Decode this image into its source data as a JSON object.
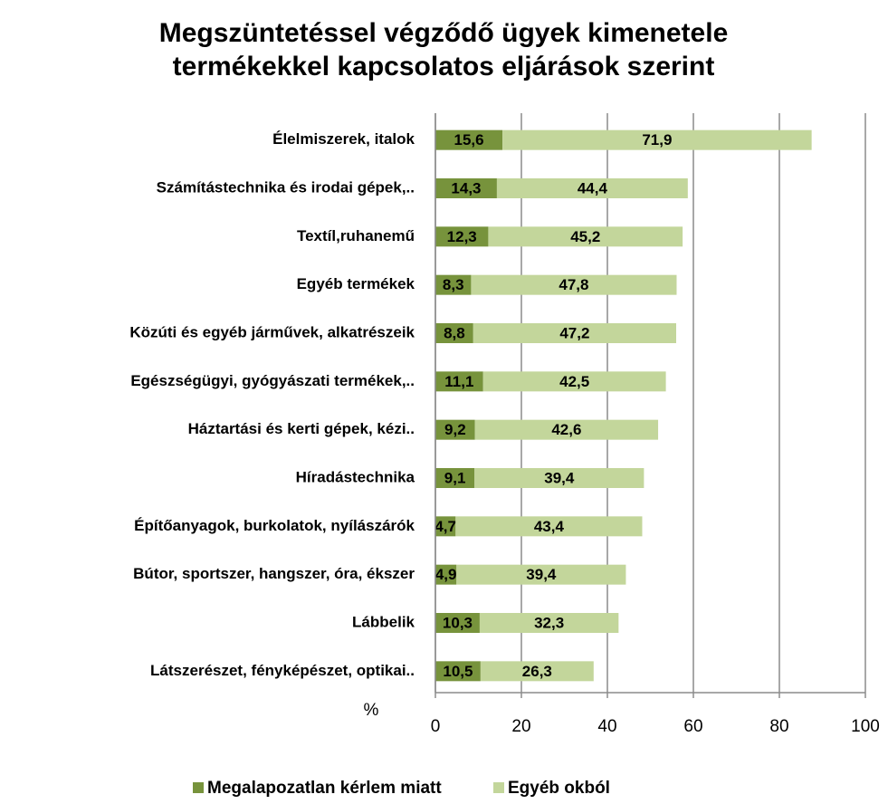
{
  "chart_data": {
    "type": "stacked_bar_horizontal",
    "title": [
      "Megszüntetéssel végződő ügyek kimenetele",
      "termékekkel kapcsolatos eljárások szerint"
    ],
    "x_label": "%",
    "categories": [
      "Élelmiszerek, italok",
      "Számítástechnika és irodai gépek,..",
      "Textíl,ruhanemű",
      "Egyéb termékek",
      "Közúti és egyéb járművek, alkatrészeik",
      "Egészségügyi, gyógyászati termékek,..",
      "Háztartási és kerti gépek, kézi..",
      "Híradástechnika",
      "Építőanyagok, burkolatok, nyílászárók",
      "Bútor, sportszer, hangszer, óra, ékszer",
      "Lábbelik",
      "Látszerészet, fényképészet, optikai.."
    ],
    "series": [
      {
        "name": "Megalapozatlan kérlem miatt",
        "color": "#77933c",
        "values": [
          15.6,
          14.3,
          12.3,
          8.3,
          8.8,
          11.1,
          9.2,
          9.1,
          4.7,
          4.9,
          10.3,
          10.5
        ],
        "value_labels": [
          "15,6",
          "14,3",
          "12,3",
          "8,3",
          "8,8",
          "11,1",
          "9,2",
          "9,1",
          "4,7",
          "4,9",
          "10,3",
          "10,5"
        ]
      },
      {
        "name": "Egyéb okból",
        "color": "#c3d69b",
        "values": [
          71.9,
          44.4,
          45.2,
          47.8,
          47.2,
          42.5,
          42.6,
          39.4,
          43.4,
          39.4,
          32.3,
          26.3
        ],
        "value_labels": [
          "71,9",
          "44,4",
          "45,2",
          "47,8",
          "47,2",
          "42,5",
          "42,6",
          "39,4",
          "43,4",
          "39,4",
          "32,3",
          "26,3"
        ]
      }
    ],
    "xlim": [
      0,
      100
    ],
    "xticks": [
      0,
      20,
      40,
      60,
      80,
      100
    ],
    "grid": true,
    "legend": "bottom"
  }
}
